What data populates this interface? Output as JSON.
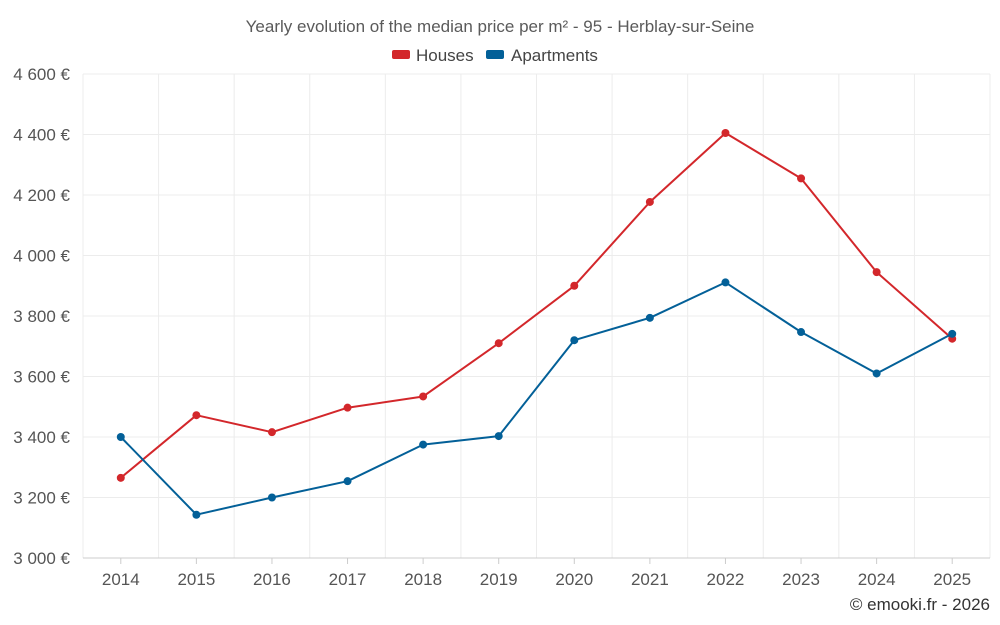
{
  "chart_data": {
    "type": "line",
    "title": "Yearly evolution of the median price per m² - 95 - Herblay-sur-Seine",
    "categories": [
      "2014",
      "2015",
      "2016",
      "2017",
      "2018",
      "2019",
      "2020",
      "2021",
      "2022",
      "2023",
      "2024",
      "2025"
    ],
    "series": [
      {
        "name": "Houses",
        "color": "#d3272b",
        "values": [
          3265,
          3472,
          3416,
          3497,
          3534,
          3710,
          3900,
          4177,
          4405,
          4255,
          3945,
          3725
        ]
      },
      {
        "name": "Apartments",
        "color": "#036098",
        "values": [
          3400,
          3143,
          3200,
          3254,
          3375,
          3403,
          3720,
          3794,
          3911,
          3747,
          3610,
          3741
        ]
      }
    ],
    "ylim": [
      3000,
      4600
    ],
    "yticks": [
      3000,
      3200,
      3400,
      3600,
      3800,
      4000,
      4200,
      4400,
      4600
    ],
    "ytick_labels": [
      "3 000 €",
      "3 200 €",
      "3 400 €",
      "3 600 €",
      "3 800 €",
      "4 000 €",
      "4 200 €",
      "4 400 €",
      "4 600 €"
    ],
    "xlabel": "",
    "ylabel": "",
    "legend": "top-center",
    "grid": true
  },
  "credit": "© emooki.fr - 2026"
}
